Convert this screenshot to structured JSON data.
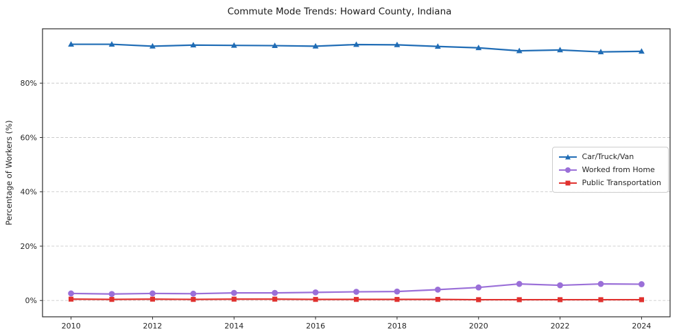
{
  "chart_data": {
    "type": "line",
    "title": "Commute Mode Trends: Howard County, Indiana",
    "xlabel": "",
    "ylabel": "Percentage of Workers (%)",
    "x": [
      2010,
      2011,
      2012,
      2013,
      2014,
      2015,
      2016,
      2017,
      2018,
      2019,
      2020,
      2021,
      2022,
      2023,
      2024
    ],
    "series": [
      {
        "name": "Car/Truck/Van",
        "color": "#1f6cb5",
        "marker": "triangle",
        "values": [
          94.3,
          94.3,
          93.6,
          94.0,
          93.9,
          93.8,
          93.6,
          94.2,
          94.1,
          93.5,
          93.0,
          91.9,
          92.2,
          91.5,
          91.7
        ]
      },
      {
        "name": "Worked from Home",
        "color": "#9a6fd8",
        "marker": "circle",
        "values": [
          2.6,
          2.4,
          2.6,
          2.5,
          2.8,
          2.8,
          3.0,
          3.2,
          3.3,
          4.0,
          4.8,
          6.1,
          5.6,
          6.1,
          6.0
        ]
      },
      {
        "name": "Public Transportation",
        "color": "#e0312e",
        "marker": "square",
        "values": [
          0.5,
          0.4,
          0.5,
          0.4,
          0.5,
          0.5,
          0.4,
          0.4,
          0.4,
          0.4,
          0.3,
          0.3,
          0.3,
          0.3,
          0.3
        ]
      }
    ],
    "xticks": [
      2010,
      2012,
      2014,
      2016,
      2018,
      2020,
      2022,
      2024
    ],
    "yticks": [
      0,
      20,
      40,
      60,
      80
    ],
    "ytick_labels": [
      "0%",
      "20%",
      "40%",
      "60%",
      "80%"
    ],
    "xlim": [
      2009.3,
      2024.7
    ],
    "ylim": [
      -6,
      100
    ],
    "grid": true,
    "legend_position": "center right"
  }
}
